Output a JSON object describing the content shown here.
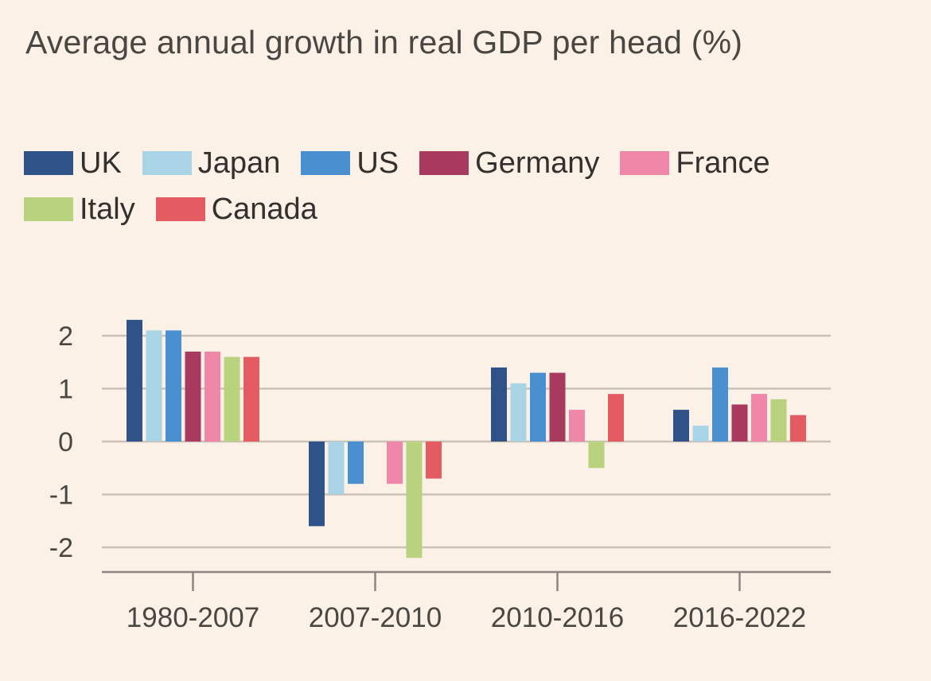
{
  "chart_data": {
    "type": "bar",
    "title": "Average annual growth in real GDP per head (%)",
    "xlabel": "",
    "ylabel": "",
    "categories": [
      "1980-2007",
      "2007-2010",
      "2010-2016",
      "2016-2022"
    ],
    "yticks": [
      2,
      1,
      0,
      -1,
      -2
    ],
    "ytick_labels": [
      "2",
      "1",
      "0",
      "-1",
      "-2"
    ],
    "ylim": [
      -2.5,
      2.5
    ],
    "grid": true,
    "legend_placement": "top-left",
    "series": [
      {
        "name": "UK",
        "color": "#2f5389",
        "values": [
          2.3,
          -1.6,
          1.4,
          0.6
        ]
      },
      {
        "name": "Japan",
        "color": "#a8d4e6",
        "values": [
          2.1,
          -1.0,
          1.1,
          0.3
        ]
      },
      {
        "name": "US",
        "color": "#4a8fcf",
        "values": [
          2.1,
          -0.8,
          1.3,
          1.4
        ]
      },
      {
        "name": "Germany",
        "color": "#a8395f",
        "values": [
          1.7,
          0.0,
          1.3,
          0.7
        ]
      },
      {
        "name": "France",
        "color": "#ef87a8",
        "values": [
          1.7,
          -0.8,
          0.6,
          0.9
        ]
      },
      {
        "name": "Italy",
        "color": "#b8d27e",
        "values": [
          1.6,
          -2.2,
          -0.5,
          0.8
        ]
      },
      {
        "name": "Canada",
        "color": "#e45c62",
        "values": [
          1.6,
          -0.7,
          0.9,
          0.5
        ]
      }
    ]
  }
}
